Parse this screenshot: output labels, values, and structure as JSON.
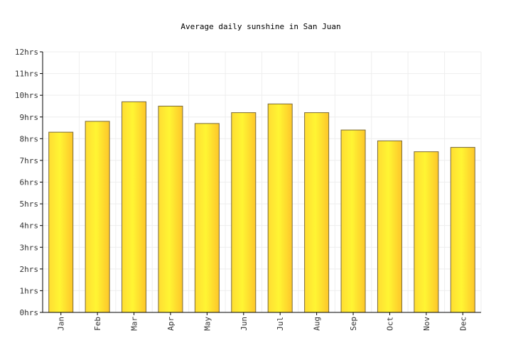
{
  "chart_data": {
    "type": "bar",
    "title": "Average daily sunshine in San Juan",
    "xlabel": "",
    "ylabel": "",
    "categories": [
      "Jan",
      "Feb",
      "Mar",
      "Apr",
      "May",
      "Jun",
      "Jul",
      "Aug",
      "Sep",
      "Oct",
      "Nov",
      "Dec"
    ],
    "values": [
      8.3,
      8.8,
      9.7,
      9.5,
      8.7,
      9.2,
      9.6,
      9.2,
      8.4,
      7.9,
      7.4,
      7.6
    ],
    "ylim": [
      0,
      12
    ],
    "yticks": [
      0,
      1,
      2,
      3,
      4,
      5,
      6,
      7,
      8,
      9,
      10,
      11,
      12
    ],
    "ytick_labels": [
      "0hrs",
      "1hrs",
      "2hrs",
      "3hrs",
      "4hrs",
      "5hrs",
      "6hrs",
      "7hrs",
      "8hrs",
      "9hrs",
      "10hrs",
      "11hrs",
      "12hrs"
    ],
    "grid": true,
    "legend": "none",
    "colors": {
      "bar_left": "#ffdd33",
      "bar_mid": "#fff533",
      "bar_right": "#fdc62a",
      "bar_stroke": "#7a6a3a",
      "grid": "#eeeeee",
      "axis": "#000000"
    }
  }
}
